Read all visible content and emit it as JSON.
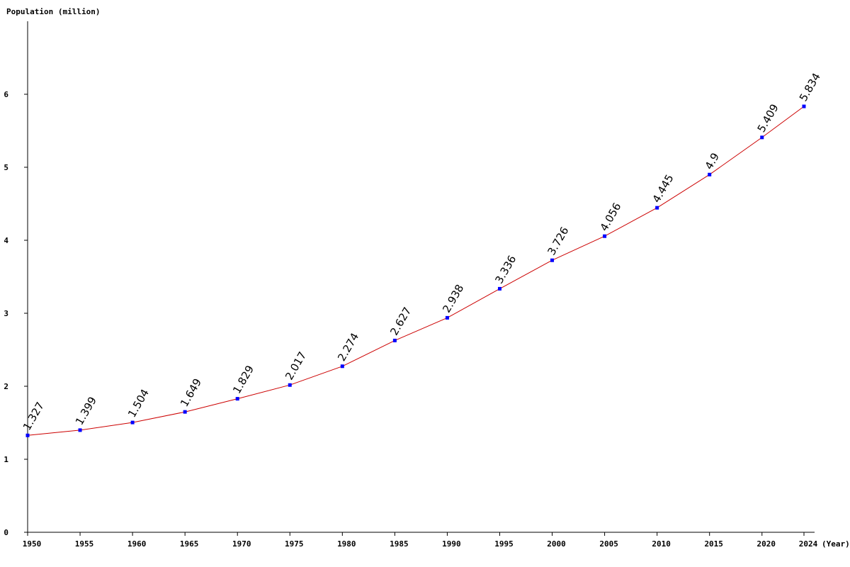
{
  "chart_data": {
    "type": "line",
    "ylabel": "Population (million)",
    "xlabel": "(Year)",
    "ylim": [
      0,
      7
    ],
    "yticks": [
      0,
      1,
      2,
      3,
      4,
      5,
      6
    ],
    "xlim": [
      1950,
      2024
    ],
    "x": [
      1950,
      1955,
      1960,
      1965,
      1970,
      1975,
      1980,
      1985,
      1990,
      1995,
      2000,
      2005,
      2010,
      2015,
      2020,
      2024
    ],
    "series": [
      {
        "values": [
          1.327,
          1.399,
          1.504,
          1.649,
          1.829,
          2.017,
          2.274,
          2.627,
          2.938,
          3.336,
          3.726,
          4.056,
          4.445,
          4.9,
          5.409,
          5.834
        ],
        "labels": [
          "1.327",
          "1.399",
          "1.504",
          "1.649",
          "1.829",
          "2.017",
          "2.274",
          "2.627",
          "2.938",
          "3.336",
          "3.726",
          "4.056",
          "4.445",
          "4.9",
          "5.409",
          "5.834"
        ]
      }
    ],
    "line_color": "#cc0000",
    "marker_color": "#0000ff",
    "grid": false
  }
}
